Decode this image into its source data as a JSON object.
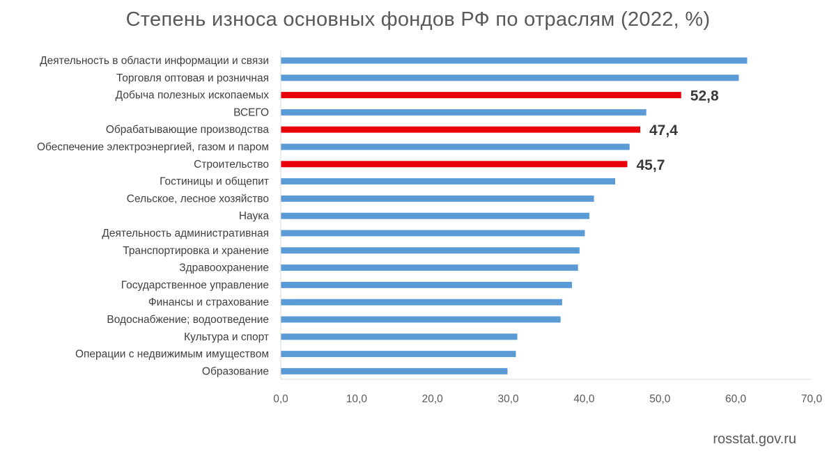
{
  "chart_data": {
    "type": "bar",
    "orientation": "horizontal",
    "title": "Степень износа основных фондов  РФ по отраслям (2022, %)",
    "categories": [
      "Деятельность в области информации и связи",
      "Торговля оптовая и розничная",
      "Добыча полезных ископаемых",
      "ВСЕГО",
      "Обрабатывающие производства",
      "Обеспечение электроэнергией, газом и паром",
      "Строительство",
      "Гостиницы и общепит",
      "Сельское, лесное хозяйство",
      "Наука",
      "Деятельность административная",
      "Транспортировка и хранение",
      "Здравоохранение",
      "Государственное управление",
      "Финансы и страхование",
      "Водоснабжение; водоотведение",
      "Культура и спорт",
      "Операции с недвижимым имуществом",
      "Образование"
    ],
    "values": [
      61.5,
      60.4,
      52.8,
      48.2,
      47.4,
      46.0,
      45.7,
      44.1,
      41.3,
      40.7,
      40.1,
      39.4,
      39.2,
      38.4,
      37.1,
      36.9,
      31.2,
      31.0,
      29.9
    ],
    "highlighted": [
      false,
      false,
      true,
      false,
      true,
      false,
      true,
      false,
      false,
      false,
      false,
      false,
      false,
      false,
      false,
      false,
      false,
      false,
      false
    ],
    "data_labels": [
      "",
      "",
      "52,8",
      "",
      "47,4",
      "",
      "45,7",
      "",
      "",
      "",
      "",
      "",
      "",
      "",
      "",
      "",
      "",
      "",
      ""
    ],
    "xlim": [
      0,
      70
    ],
    "x_ticks": [
      "0,0",
      "10,0",
      "20,0",
      "30,0",
      "40,0",
      "50,0",
      "60,0",
      "70,0"
    ],
    "xlabel": "",
    "ylabel": "",
    "grid": false,
    "legend": "none",
    "colors": {
      "bar": "#5b9bd5",
      "highlight": "#e8000b",
      "axis": "#d9d9d9",
      "text": "#404040"
    }
  },
  "source": "rosstat.gov.ru"
}
